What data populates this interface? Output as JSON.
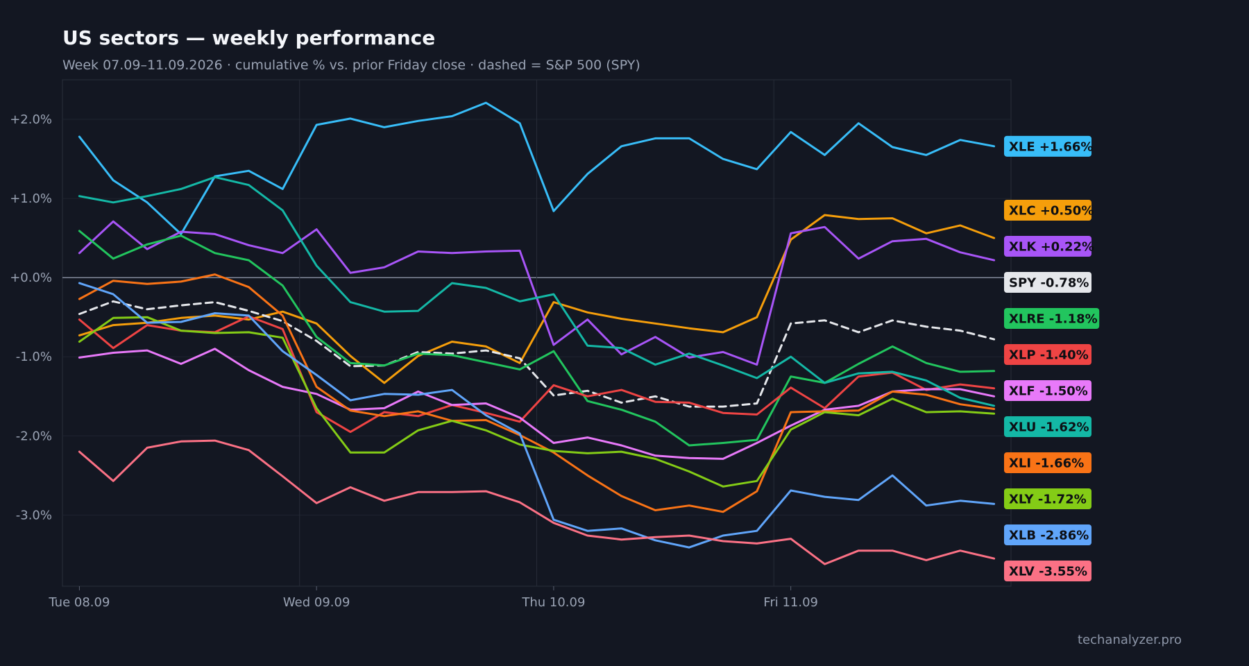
{
  "header": {
    "title": "US sectors — weekly performance",
    "subtitle": "Week 07.09–11.09.2026 · cumulative % vs. prior Friday close · dashed = S&P 500 (SPY)"
  },
  "footer": {
    "watermark": "techanalyzer.pro"
  },
  "chart_data": {
    "type": "line",
    "title": "US sectors — weekly performance",
    "subtitle": "Week 07.09–11.09.2026 · cumulative % vs. prior Friday close · dashed = S&P 500 (SPY)",
    "x_ticks": [
      {
        "label": "Tue 08.09",
        "index": 0
      },
      {
        "label": "Wed 09.09",
        "index": 7
      },
      {
        "label": "Thu 10.09",
        "index": 14
      },
      {
        "label": "Fri 11.09",
        "index": 21
      }
    ],
    "y_ticks": [
      "+2.0%",
      "+1.0%",
      "+0.0%",
      "-1.0%",
      "-2.0%",
      "-3.0%"
    ],
    "y_tick_values": [
      2,
      1,
      0,
      -1,
      -2,
      -3
    ],
    "ylim": [
      -3.9,
      2.5
    ],
    "x_range": [
      -0.5,
      27.5
    ],
    "points_per_series": 28,
    "grid": true,
    "zero_line": true,
    "legend_placement": "right end labels",
    "series": [
      {
        "name": "XLE",
        "label": "XLE +1.66%",
        "color": "#38bdf8",
        "values": [
          1.78,
          1.23,
          0.95,
          0.55,
          1.28,
          1.35,
          1.12,
          1.93,
          2.01,
          1.9,
          1.98,
          2.04,
          2.21,
          1.95,
          0.84,
          1.31,
          1.66,
          1.76,
          1.76,
          1.5,
          1.37,
          1.84,
          1.55,
          1.95,
          1.65,
          1.55,
          1.74,
          1.66
        ]
      },
      {
        "name": "XLC",
        "label": "XLC +0.50%",
        "color": "#f59e0b",
        "values": [
          -0.73,
          -0.6,
          -0.57,
          -0.51,
          -0.48,
          -0.53,
          -0.43,
          -0.58,
          -0.99,
          -1.33,
          -0.99,
          -0.81,
          -0.87,
          -1.08,
          -0.31,
          -0.44,
          -0.52,
          -0.58,
          -0.64,
          -0.69,
          -0.5,
          0.48,
          0.79,
          0.74,
          0.75,
          0.56,
          0.66,
          0.5
        ]
      },
      {
        "name": "XLK",
        "label": "XLK +0.22%",
        "color": "#a855f7",
        "values": [
          0.31,
          0.71,
          0.36,
          0.58,
          0.55,
          0.41,
          0.31,
          0.61,
          0.06,
          0.13,
          0.33,
          0.31,
          0.33,
          0.34,
          -0.85,
          -0.53,
          -0.97,
          -0.75,
          -1.01,
          -0.94,
          -1.1,
          0.56,
          0.64,
          0.24,
          0.46,
          0.49,
          0.32,
          0.22
        ]
      },
      {
        "name": "SPY",
        "label": "SPY -0.78%",
        "color": "#e5e7eb",
        "dashed": true,
        "values": [
          -0.46,
          -0.3,
          -0.4,
          -0.35,
          -0.31,
          -0.42,
          -0.55,
          -0.8,
          -1.12,
          -1.11,
          -0.94,
          -0.96,
          -0.92,
          -1.02,
          -1.49,
          -1.43,
          -1.58,
          -1.5,
          -1.63,
          -1.63,
          -1.59,
          -0.58,
          -0.54,
          -0.69,
          -0.54,
          -0.62,
          -0.67,
          -0.78
        ]
      },
      {
        "name": "XLRE",
        "label": "XLRE -1.18%",
        "color": "#22c55e",
        "values": [
          0.59,
          0.24,
          0.42,
          0.53,
          0.31,
          0.22,
          -0.1,
          -0.75,
          -1.08,
          -1.11,
          -0.96,
          -0.98,
          -1.07,
          -1.16,
          -0.93,
          -1.56,
          -1.67,
          -1.82,
          -2.12,
          -2.09,
          -2.05,
          -1.25,
          -1.33,
          -1.09,
          -0.87,
          -1.08,
          -1.19,
          -1.18
        ]
      },
      {
        "name": "XLP",
        "label": "XLP -1.40%",
        "color": "#ef4444",
        "values": [
          -0.53,
          -0.89,
          -0.6,
          -0.67,
          -0.69,
          -0.49,
          -0.65,
          -1.7,
          -1.95,
          -1.7,
          -1.75,
          -1.61,
          -1.71,
          -1.82,
          -1.36,
          -1.5,
          -1.42,
          -1.57,
          -1.58,
          -1.71,
          -1.73,
          -1.39,
          -1.65,
          -1.25,
          -1.2,
          -1.42,
          -1.35,
          -1.4
        ]
      },
      {
        "name": "XLF",
        "label": "XLF -1.50%",
        "color": "#e879f9",
        "values": [
          -1.01,
          -0.95,
          -0.92,
          -1.09,
          -0.9,
          -1.17,
          -1.38,
          -1.47,
          -1.67,
          -1.65,
          -1.44,
          -1.61,
          -1.59,
          -1.77,
          -2.09,
          -2.02,
          -2.12,
          -2.25,
          -2.28,
          -2.29,
          -2.09,
          -1.87,
          -1.67,
          -1.62,
          -1.44,
          -1.41,
          -1.41,
          -1.5
        ]
      },
      {
        "name": "XLU",
        "label": "XLU -1.62%",
        "color": "#14b8a6",
        "values": [
          1.03,
          0.95,
          1.03,
          1.12,
          1.27,
          1.17,
          0.85,
          0.15,
          -0.31,
          -0.43,
          -0.42,
          -0.07,
          -0.13,
          -0.3,
          -0.21,
          -0.86,
          -0.89,
          -1.1,
          -0.96,
          -1.11,
          -1.27,
          -1.0,
          -1.33,
          -1.21,
          -1.19,
          -1.3,
          -1.52,
          -1.62
        ]
      },
      {
        "name": "XLI",
        "label": "XLI -1.66%",
        "color": "#f97316",
        "values": [
          -0.27,
          -0.04,
          -0.08,
          -0.05,
          0.04,
          -0.12,
          -0.48,
          -1.38,
          -1.68,
          -1.75,
          -1.69,
          -1.81,
          -1.8,
          -1.99,
          -2.21,
          -2.5,
          -2.76,
          -2.94,
          -2.88,
          -2.96,
          -2.7,
          -1.7,
          -1.69,
          -1.68,
          -1.44,
          -1.48,
          -1.6,
          -1.66
        ]
      },
      {
        "name": "XLY",
        "label": "XLY -1.72%",
        "color": "#84cc16",
        "values": [
          -0.81,
          -0.51,
          -0.5,
          -0.67,
          -0.7,
          -0.69,
          -0.76,
          -1.65,
          -2.21,
          -2.21,
          -1.93,
          -1.81,
          -1.93,
          -2.11,
          -2.19,
          -2.22,
          -2.2,
          -2.29,
          -2.45,
          -2.64,
          -2.57,
          -1.92,
          -1.7,
          -1.74,
          -1.53,
          -1.7,
          -1.69,
          -1.72
        ]
      },
      {
        "name": "XLB",
        "label": "XLB -2.86%",
        "color": "#60a5fa",
        "values": [
          -0.07,
          -0.21,
          -0.57,
          -0.56,
          -0.45,
          -0.48,
          -0.93,
          -1.23,
          -1.55,
          -1.47,
          -1.48,
          -1.42,
          -1.74,
          -1.97,
          -3.06,
          -3.2,
          -3.17,
          -3.32,
          -3.41,
          -3.26,
          -3.2,
          -2.69,
          -2.77,
          -2.81,
          -2.5,
          -2.88,
          -2.82,
          -2.86
        ]
      },
      {
        "name": "XLV",
        "label": "XLV -3.55%",
        "color": "#fb7185",
        "values": [
          -2.2,
          -2.57,
          -2.15,
          -2.07,
          -2.06,
          -2.18,
          -2.51,
          -2.85,
          -2.65,
          -2.82,
          -2.71,
          -2.71,
          -2.7,
          -2.84,
          -3.1,
          -3.26,
          -3.31,
          -3.28,
          -3.26,
          -3.33,
          -3.36,
          -3.3,
          -3.62,
          -3.45,
          -3.45,
          -3.57,
          -3.45,
          -3.55
        ]
      }
    ]
  }
}
